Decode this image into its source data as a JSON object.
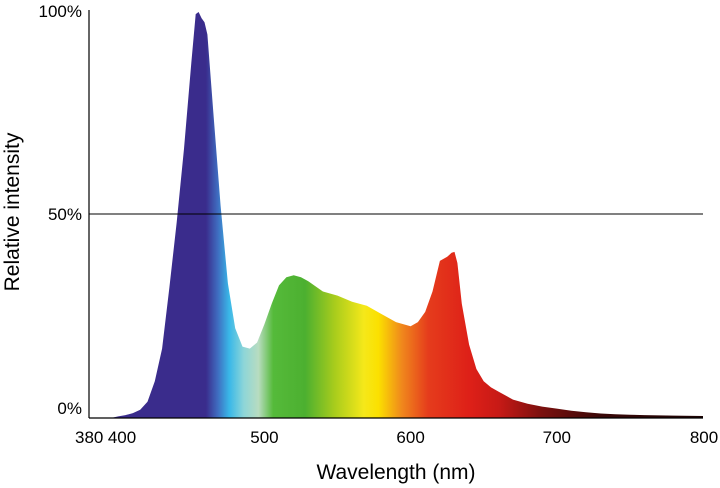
{
  "chart_data": {
    "type": "area",
    "title": "",
    "xlabel": "Wavelength (nm)",
    "ylabel": "Relative intensity",
    "xlim": [
      380,
      800
    ],
    "ylim": [
      0,
      100
    ],
    "x_ticks": [
      {
        "value": 380,
        "label": "380"
      },
      {
        "value": 400,
        "label": "400"
      },
      {
        "value": 500,
        "label": "500"
      },
      {
        "value": 600,
        "label": "600"
      },
      {
        "value": 700,
        "label": "700"
      },
      {
        "value": 800,
        "label": "800"
      }
    ],
    "y_ticks": [
      {
        "value": 0,
        "label": "0%"
      },
      {
        "value": 50,
        "label": "50%"
      },
      {
        "value": 100,
        "label": "100%"
      }
    ],
    "reference_lines": [
      {
        "axis": "y",
        "value": 50
      }
    ],
    "fill": "visible spectrum gradient",
    "gradient_stops": [
      {
        "wavelength": 440,
        "color": "#3a2c8c"
      },
      {
        "wavelength": 460,
        "color": "#3a2c8c"
      },
      {
        "wavelength": 468,
        "color": "#3f6cc0"
      },
      {
        "wavelength": 476,
        "color": "#39b8e8"
      },
      {
        "wavelength": 486,
        "color": "#8ed6d8"
      },
      {
        "wavelength": 496,
        "color": "#b8dcc0"
      },
      {
        "wavelength": 506,
        "color": "#55ba3a"
      },
      {
        "wavelength": 528,
        "color": "#4cb030"
      },
      {
        "wavelength": 548,
        "color": "#a8cc1c"
      },
      {
        "wavelength": 568,
        "color": "#f5e81a"
      },
      {
        "wavelength": 578,
        "color": "#fbe000"
      },
      {
        "wavelength": 594,
        "color": "#f0881c"
      },
      {
        "wavelength": 612,
        "color": "#e53c1c"
      },
      {
        "wavelength": 640,
        "color": "#de2018"
      },
      {
        "wavelength": 660,
        "color": "#c81a16"
      },
      {
        "wavelength": 690,
        "color": "#7a100e"
      },
      {
        "wavelength": 730,
        "color": "#3a0808"
      },
      {
        "wavelength": 800,
        "color": "#1c0303"
      }
    ],
    "series": [
      {
        "x": [
          395,
          400,
          405,
          410,
          415,
          420,
          425,
          430,
          435,
          440,
          445,
          450,
          453,
          455,
          457,
          459,
          461,
          465,
          470,
          475,
          480,
          485,
          490,
          495,
          500,
          505,
          510,
          515,
          520,
          525,
          530,
          540,
          550,
          560,
          570,
          580,
          590,
          600,
          605,
          610,
          615,
          620,
          625,
          628,
          630,
          632,
          635,
          640,
          645,
          650,
          655,
          660,
          670,
          680,
          690,
          700,
          710,
          720,
          730,
          740,
          750,
          760,
          780,
          800
        ],
        "y": [
          0,
          0.4,
          0.7,
          1.2,
          2.0,
          4,
          9,
          17,
          32,
          48,
          66,
          87,
          99,
          99.5,
          98,
          97,
          94,
          75,
          52,
          33,
          22,
          17.5,
          17,
          18.5,
          23,
          28,
          32.5,
          34.5,
          35,
          34.5,
          33.5,
          31,
          30,
          28.5,
          27.5,
          25.5,
          23.5,
          22.5,
          23.5,
          26,
          31,
          38.5,
          39.5,
          40.5,
          40.7,
          38,
          28,
          18,
          12,
          9,
          7.5,
          6.5,
          4.5,
          3.5,
          2.8,
          2.3,
          1.8,
          1.4,
          1.1,
          0.9,
          0.8,
          0.7,
          0.6,
          0.5
        ]
      }
    ],
    "grid": false,
    "legend": "none"
  }
}
